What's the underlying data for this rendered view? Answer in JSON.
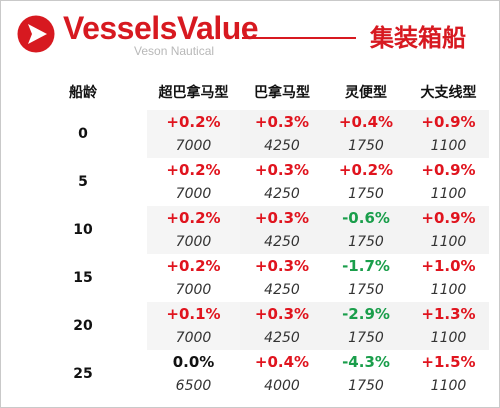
{
  "header": {
    "brand": "VesselsValue",
    "sub_brand": "Veson Nautical",
    "title": "集装箱船",
    "colors": {
      "brand_red": "#d71920"
    }
  },
  "table": {
    "columns": [
      "船龄",
      "超巴拿马型",
      "巴拿马型",
      "灵便型",
      "大支线型"
    ],
    "rows": [
      {
        "age": "0",
        "changes": [
          "+0.2%",
          "+0.3%",
          "+0.4%",
          "+0.9%"
        ],
        "trend": [
          "pos",
          "pos",
          "pos",
          "pos"
        ],
        "values": [
          "7000",
          "4250",
          "1750",
          "1100"
        ]
      },
      {
        "age": "5",
        "changes": [
          "+0.2%",
          "+0.3%",
          "+0.2%",
          "+0.9%"
        ],
        "trend": [
          "pos",
          "pos",
          "pos",
          "pos"
        ],
        "values": [
          "7000",
          "4250",
          "1750",
          "1100"
        ]
      },
      {
        "age": "10",
        "changes": [
          "+0.2%",
          "+0.3%",
          "-0.6%",
          "+0.9%"
        ],
        "trend": [
          "pos",
          "pos",
          "neg",
          "pos"
        ],
        "values": [
          "7000",
          "4250",
          "1750",
          "1100"
        ]
      },
      {
        "age": "15",
        "changes": [
          "+0.2%",
          "+0.3%",
          "-1.7%",
          "+1.0%"
        ],
        "trend": [
          "pos",
          "pos",
          "neg",
          "pos"
        ],
        "values": [
          "7000",
          "4250",
          "1750",
          "1100"
        ]
      },
      {
        "age": "20",
        "changes": [
          "+0.1%",
          "+0.3%",
          "-2.9%",
          "+1.3%"
        ],
        "trend": [
          "pos",
          "pos",
          "neg",
          "pos"
        ],
        "values": [
          "7000",
          "4250",
          "1750",
          "1100"
        ]
      },
      {
        "age": "25",
        "changes": [
          "0.0%",
          "+0.4%",
          "-4.3%",
          "+1.5%"
        ],
        "trend": [
          "neu",
          "pos",
          "neg",
          "pos"
        ],
        "values": [
          "6500",
          "4000",
          "1750",
          "1100"
        ]
      }
    ]
  }
}
